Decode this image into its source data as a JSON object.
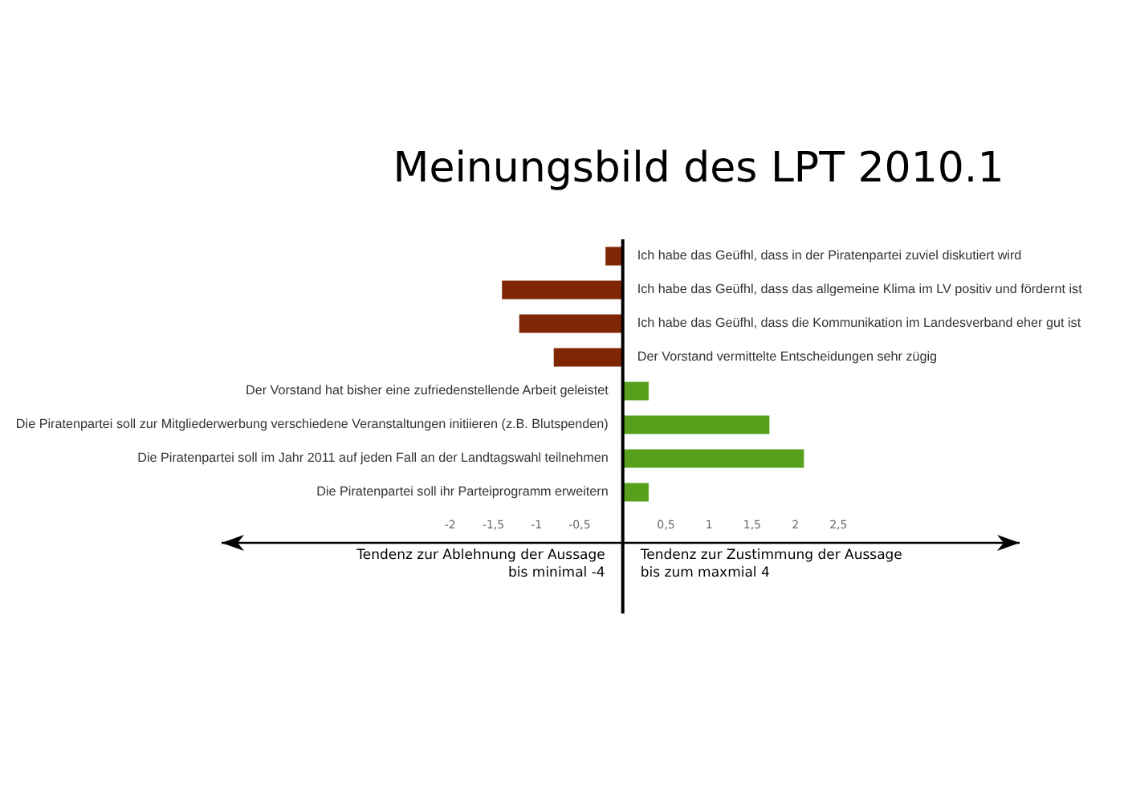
{
  "chart_data": {
    "type": "bar",
    "orientation": "horizontal",
    "title": "Meinungsbild des LPT 2010.1",
    "categories": [
      "Ich habe das Geüfhl, dass in der Piratenpartei zuviel diskutiert wird",
      "Ich habe das Geüfhl, dass das allgemeine Klima im LV positiv und fördernt ist",
      "Ich habe das Geüfhl, dass die Kommunikation im Landesverband eher gut ist",
      "Der Vorstand vermittelte Entscheidungen sehr zügig",
      "Der Vorstand hat bisher eine zufriedenstellende Arbeit geleistet",
      "Die Piratenpartei soll zur Mitgliederwerbung verschiedene Veranstaltungen initiieren (z.B. Blutspenden)",
      "Die Piratenpartei soll im Jahr 2011 auf jeden Fall an der Landtagswahl teilnehmen",
      "Die Piratenpartei soll ihr Parteiprogramm erweitern"
    ],
    "values": [
      -0.2,
      -1.4,
      -1.2,
      -0.8,
      0.3,
      1.7,
      2.1,
      0.3
    ],
    "colors": [
      "#7f2704",
      "#7f2704",
      "#7f2704",
      "#7f2704",
      "#56a01b",
      "#56a01b",
      "#56a01b",
      "#56a01b"
    ],
    "xlim": [
      -4.65,
      4.6
    ],
    "xticks": [
      {
        "value": -2,
        "label": "-2"
      },
      {
        "value": -1.5,
        "label": "-1,5"
      },
      {
        "value": -1,
        "label": "-1"
      },
      {
        "value": -0.5,
        "label": "-0,5"
      },
      {
        "value": 0.5,
        "label": "0,5"
      },
      {
        "value": 1,
        "label": "1"
      },
      {
        "value": 1.5,
        "label": "1,5"
      },
      {
        "value": 2,
        "label": "2"
      },
      {
        "value": 2.5,
        "label": "2,5"
      }
    ],
    "annotations": [
      "Tendenz zur Ablehnung der Aussage\nbis minimal -4",
      "Tendenz zur Zustimmung der Aussage\nbis zum maxmial 4"
    ]
  }
}
